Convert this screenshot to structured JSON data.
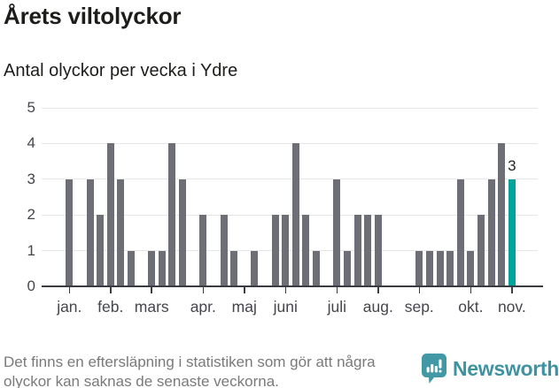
{
  "header": {
    "title": "Årets viltolyckor",
    "subtitle": "Antal olyckor per vecka i Ydre"
  },
  "chart_data": {
    "type": "bar",
    "title": "Årets viltolyckor",
    "subtitle": "Antal olyckor per vecka i Ydre",
    "x_unit": "vecka",
    "values": [
      3,
      0,
      3,
      2,
      4,
      3,
      1,
      0,
      1,
      1,
      4,
      3,
      0,
      2,
      0,
      2,
      1,
      0,
      1,
      0,
      2,
      2,
      4,
      2,
      1,
      0,
      3,
      1,
      2,
      2,
      2,
      0,
      0,
      0,
      1,
      1,
      1,
      1,
      3,
      1,
      2,
      3,
      4,
      3
    ],
    "month_ticks": [
      {
        "label": "jan.",
        "week": 1
      },
      {
        "label": "feb.",
        "week": 5
      },
      {
        "label": "mars",
        "week": 9
      },
      {
        "label": "apr.",
        "week": 14
      },
      {
        "label": "maj",
        "week": 18
      },
      {
        "label": "juni",
        "week": 22
      },
      {
        "label": "juli",
        "week": 27
      },
      {
        "label": "aug.",
        "week": 31
      },
      {
        "label": "sep.",
        "week": 35
      },
      {
        "label": "okt.",
        "week": 40
      },
      {
        "label": "nov.",
        "week": 44
      }
    ],
    "yticks": [
      0,
      1,
      2,
      3,
      4,
      5
    ],
    "ylim": [
      0,
      5
    ],
    "grid": true,
    "highlight_index": 43,
    "highlight_label": "3",
    "colors": {
      "bar": "#6e6e76",
      "highlight": "#00a49d",
      "grid": "#e6e6e6",
      "axis": "#3b3b44",
      "axis_text": "#45454c",
      "data_label": "#26262b"
    }
  },
  "footer": {
    "note": "Det finns en eftersläpning i statistiken som gör att några olyckor kan saknas de senaste veckorna.",
    "brand": "Newsworthy",
    "brand_color": "#4398a6"
  }
}
